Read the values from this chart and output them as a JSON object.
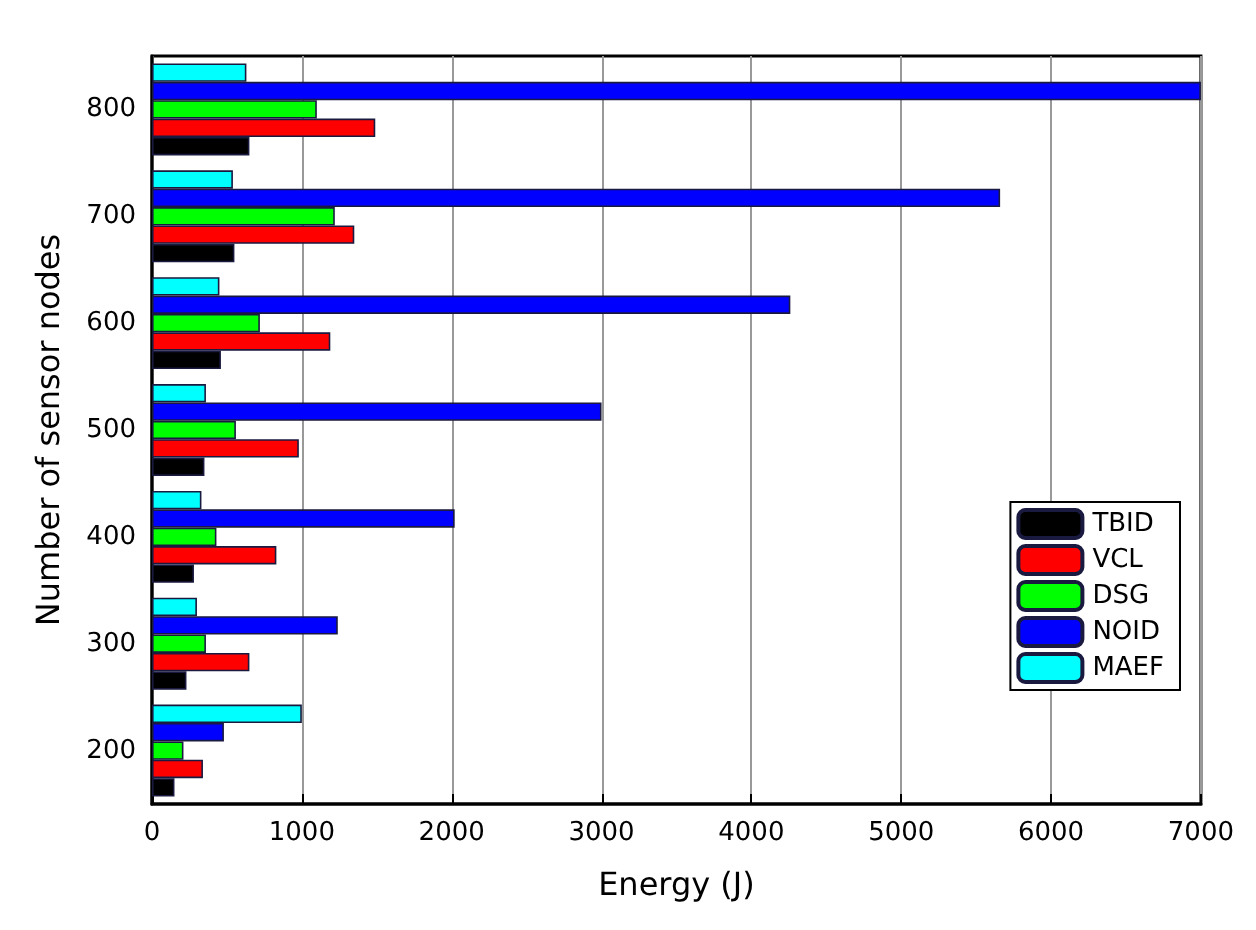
{
  "chart_data": {
    "type": "bar",
    "orientation": "horizontal",
    "xlabel": "Energy (J)",
    "ylabel": "Number of sensor nodes",
    "categories": [
      "800",
      "700",
      "600",
      "500",
      "400",
      "300",
      "200"
    ],
    "series": [
      {
        "name": "TBID",
        "color": "#000000",
        "values": [
          650,
          550,
          460,
          350,
          280,
          230,
          150
        ]
      },
      {
        "name": "VCL",
        "color": "#ff0000",
        "values": [
          1490,
          1350,
          1190,
          980,
          830,
          650,
          340
        ]
      },
      {
        "name": "DSG",
        "color": "#00ff00",
        "values": [
          1100,
          1220,
          720,
          560,
          430,
          360,
          210
        ]
      },
      {
        "name": "NOID",
        "color": "#0000ff",
        "values": [
          7000,
          5660,
          4260,
          3000,
          2020,
          1240,
          480
        ]
      },
      {
        "name": "MAEF",
        "color": "#00ffff",
        "values": [
          630,
          540,
          450,
          360,
          330,
          300,
          1000
        ]
      }
    ],
    "xlim": [
      0,
      7000
    ],
    "xticks": [
      0,
      1000,
      2000,
      3000,
      4000,
      5000,
      6000,
      7000
    ],
    "grid": "x",
    "legend": "bottom right"
  }
}
